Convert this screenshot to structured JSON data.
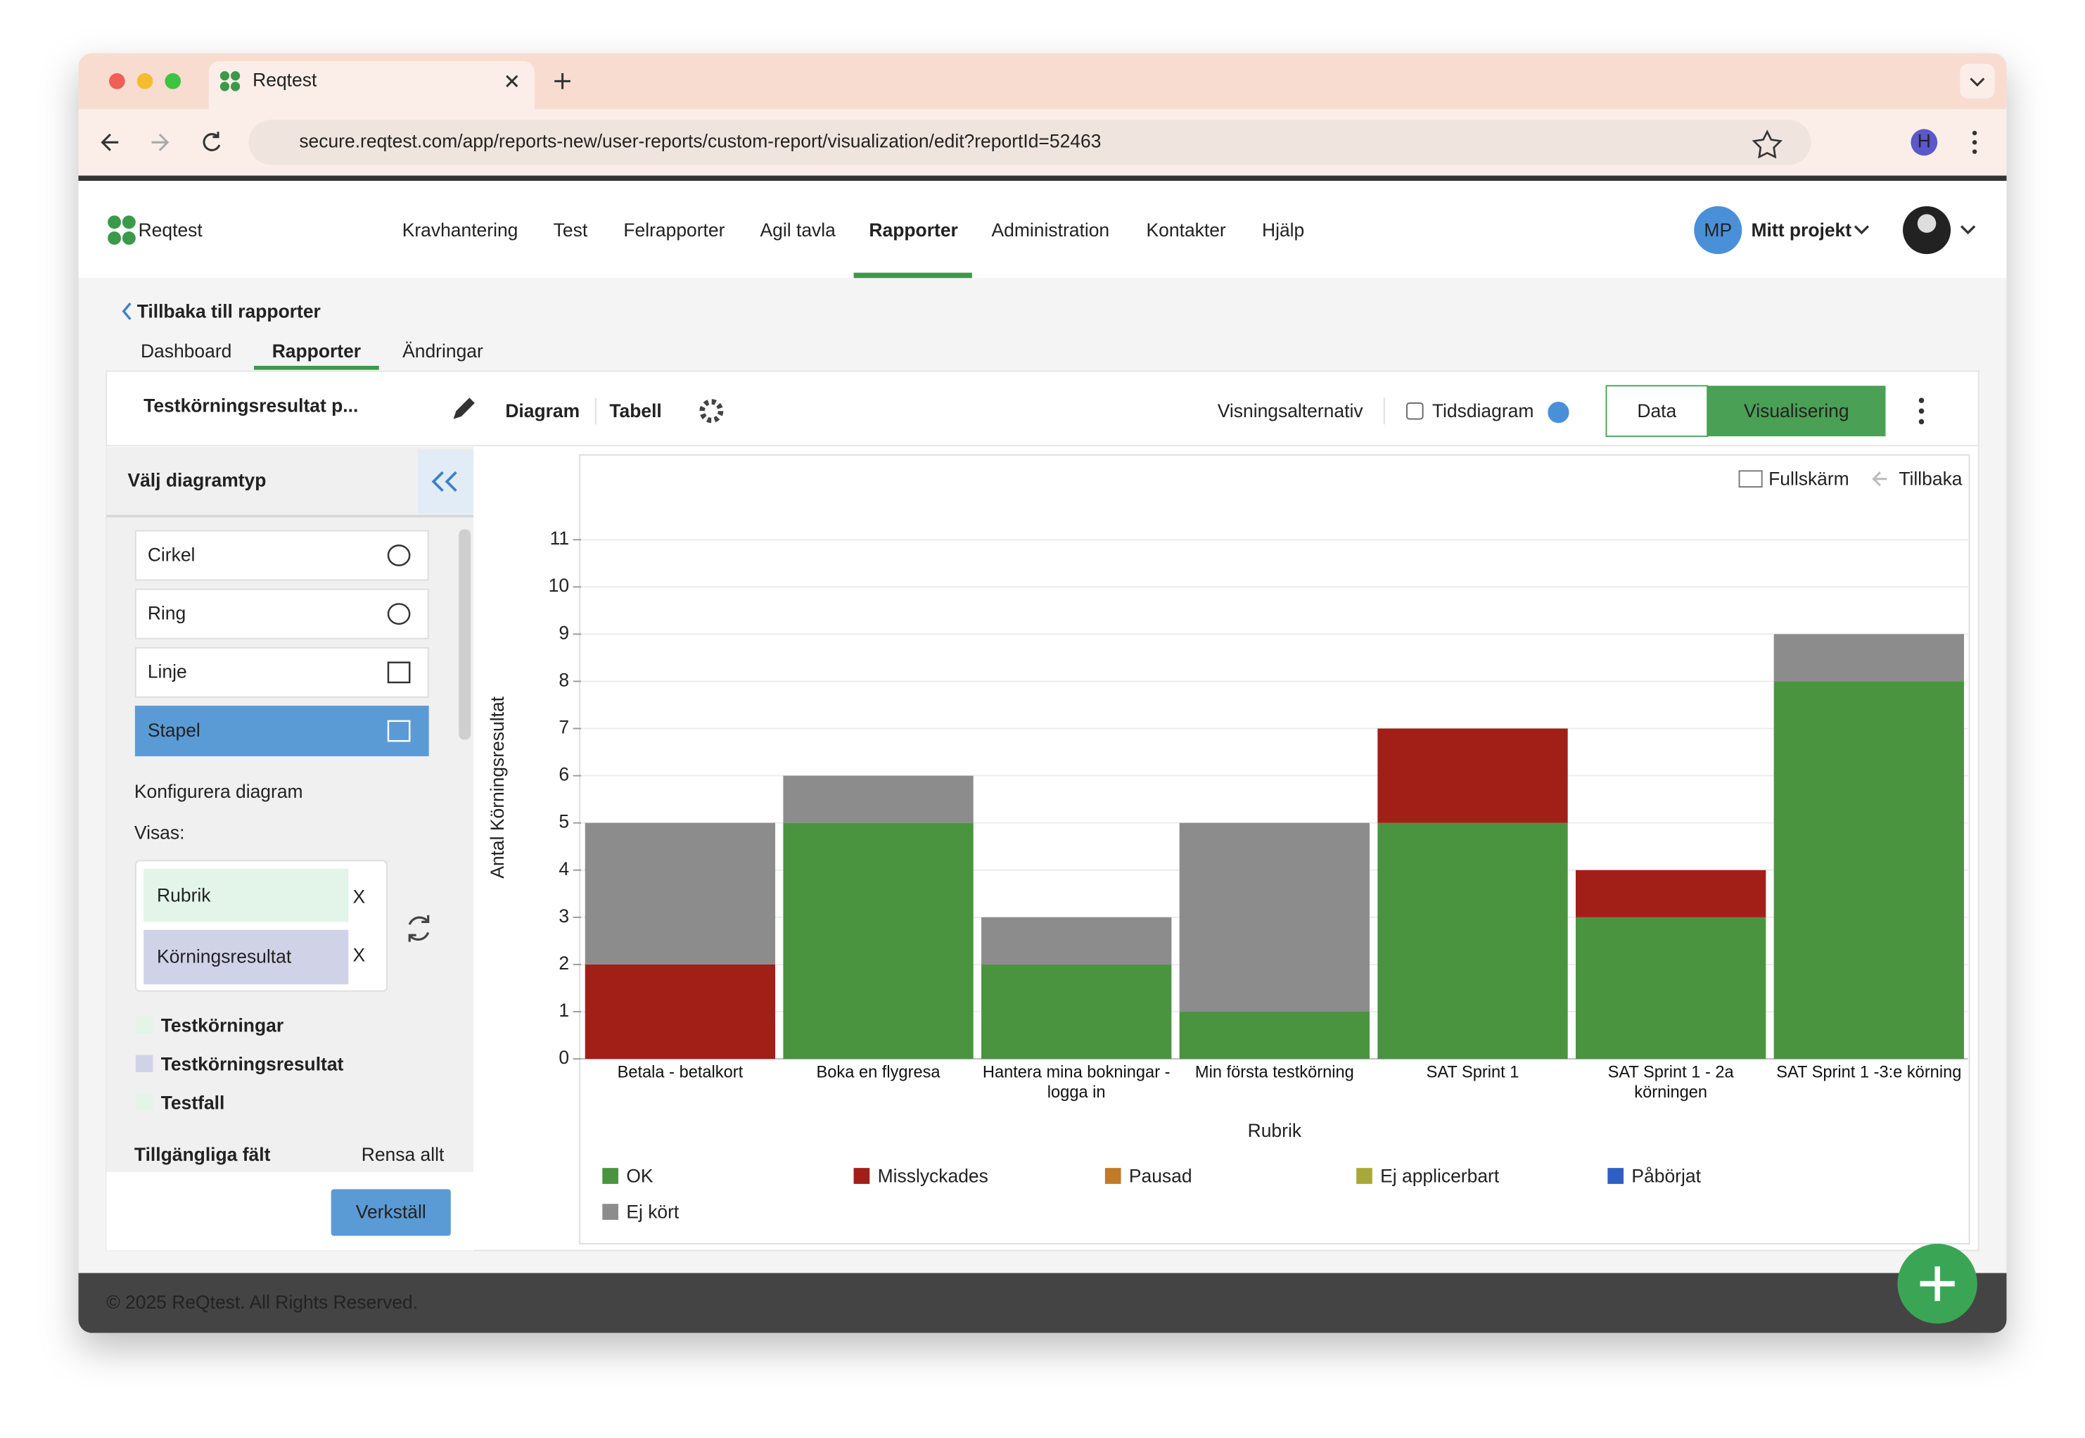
{
  "browser": {
    "tab_title": "Reqtest",
    "url": "secure.reqtest.com/app/reports-new/user-reports/custom-report/visualization/edit?reportId=52463",
    "profile": "H"
  },
  "nav": {
    "logo": "Reqtest",
    "items": [
      "Kravhantering",
      "Test",
      "Felrapporter",
      "Agil tavla",
      "Rapporter",
      "Administration",
      "Kontakter",
      "Hjälp"
    ],
    "project_badge": "MP",
    "project": "Mitt projekt"
  },
  "back_link": "Tillbaka till rapporter",
  "subtabs": [
    "Dashboard",
    "Rapporter",
    "Ändringar"
  ],
  "card": {
    "title": "Testkörningsresultat p...",
    "view_tabs": [
      "Diagram",
      "Tabell"
    ],
    "options_label": "Visningsalternativ",
    "checkbox_label": "Tidsdiagram",
    "buttons": [
      "Data",
      "Visualisering"
    ]
  },
  "sidebar": {
    "header": "Välj diagramtyp",
    "chart_types": [
      "Cirkel",
      "Ring",
      "Linje",
      "Stapel"
    ],
    "configure": "Konfigurera diagram",
    "shown_label": "Visas:",
    "shown": [
      "Rubrik",
      "Körningsresultat"
    ],
    "remove": "X",
    "groups": [
      "Testkörningar",
      "Testkörningsresultat",
      "Testfall"
    ],
    "available": "Tillgängliga fält",
    "clear": "Rensa allt",
    "apply": "Verkställ"
  },
  "chart_toolbar": [
    "Fullskärm",
    "Tillbaka"
  ],
  "footer": "© 2025 ReQtest. All Rights Reserved.",
  "chart_data": {
    "type": "stacked_bar",
    "x_label": "Rubrik",
    "y_label": "Antal Körningsresultat",
    "categories": [
      "Betala - betalkort",
      "Boka en flygresa",
      "Hantera mina bokningar - logga in",
      "Min första testkörning",
      "SAT Sprint 1",
      "SAT Sprint 1 - 2a körningen",
      "SAT Sprint 1 -3:e körning"
    ],
    "series": [
      {
        "name": "OK",
        "color": "#4a9440",
        "values": [
          0,
          5,
          2,
          1,
          5,
          3,
          8
        ]
      },
      {
        "name": "Misslyckades",
        "color": "#a21f18",
        "values": [
          2,
          0,
          0,
          0,
          2,
          1,
          0
        ]
      },
      {
        "name": "Pausad",
        "color": "#c07a2a",
        "values": [
          0,
          0,
          0,
          0,
          0,
          0,
          0
        ]
      },
      {
        "name": "Ej applicerbart",
        "color": "#a8a83a",
        "values": [
          0,
          0,
          0,
          0,
          0,
          0,
          0
        ]
      },
      {
        "name": "Påbörjat",
        "color": "#2f5fc4",
        "values": [
          0,
          0,
          0,
          0,
          0,
          0,
          0
        ]
      },
      {
        "name": "Ej kört",
        "color": "#8c8c8c",
        "values": [
          3,
          1,
          1,
          4,
          0,
          0,
          1
        ]
      }
    ],
    "ylim": [
      0,
      11.5
    ],
    "yticks": [
      0,
      1,
      2,
      3,
      4,
      5,
      6,
      7,
      8,
      9,
      10,
      11
    ],
    "grid": true,
    "legend": "bottom"
  }
}
